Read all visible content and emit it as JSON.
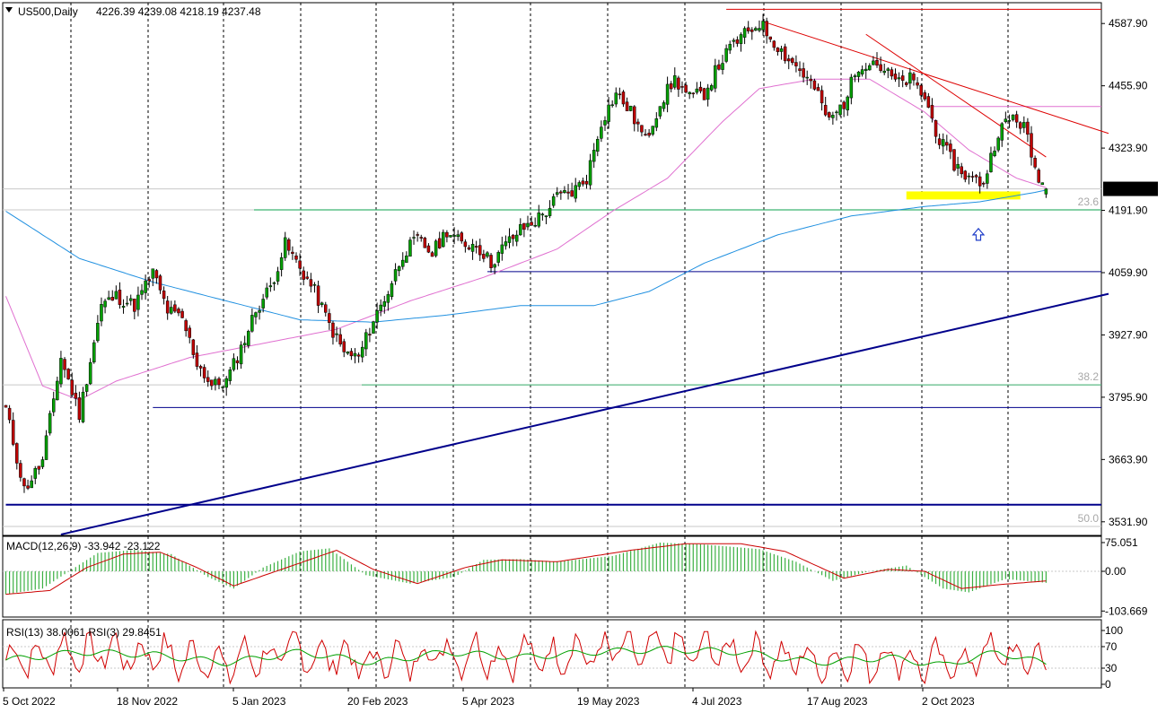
{
  "header": {
    "symbol_info": "US500,Daily",
    "ohlc": "4226.39 4239.08 4218.19 4237.48"
  },
  "colors": {
    "bull_candle": "#00a000",
    "bear_candle": "#c00000",
    "ma_fast": "#e070d0",
    "ma_slow": "#2090e0",
    "trend_red": "#dd0000",
    "support_blue": "#00008b",
    "fibo": "#3cb371",
    "highlight": "#ffff00",
    "arrow": "#1e3cc8",
    "macd_hist": "#3cb043",
    "macd_signal": "#cc0000",
    "rsi13": "#00a000",
    "rsi3": "#d00000"
  },
  "chart_data": [
    {
      "type": "candlestick",
      "symbol": "US500",
      "timeframe": "Daily",
      "x_labels": [
        "5 Oct 2022",
        "18 Nov 2022",
        "5 Jan 2023",
        "20 Feb 2023",
        "5 Apr 2023",
        "19 May 2023",
        "4 Jul 2023",
        "17 Aug 2023",
        "2 Oct 2023"
      ],
      "y_ticks": [
        "4587.90",
        "4455.90",
        "4323.90",
        "4191.90",
        "4059.90",
        "3927.90",
        "3795.90",
        "3663.90",
        "3531.90"
      ],
      "y_tick_values": [
        4587.9,
        4455.9,
        4323.9,
        4191.9,
        4059.9,
        3927.9,
        3795.9,
        3663.9,
        3531.9
      ],
      "ylim": [
        3503,
        4632
      ],
      "current_price": "4237.48",
      "close_path": [
        [
          0,
          3770
        ],
        [
          5,
          3600
        ],
        [
          10,
          3660
        ],
        [
          15,
          3880
        ],
        [
          20,
          3760
        ],
        [
          26,
          3990
        ],
        [
          30,
          4010
        ],
        [
          35,
          3990
        ],
        [
          40,
          4060
        ],
        [
          44,
          3980
        ],
        [
          48,
          3960
        ],
        [
          52,
          3870
        ],
        [
          56,
          3820
        ],
        [
          60,
          3830
        ],
        [
          64,
          3900
        ],
        [
          68,
          3980
        ],
        [
          72,
          4030
        ],
        [
          76,
          4120
        ],
        [
          80,
          4070
        ],
        [
          84,
          4020
        ],
        [
          88,
          3950
        ],
        [
          92,
          3890
        ],
        [
          96,
          3880
        ],
        [
          100,
          3960
        ],
        [
          104,
          4020
        ],
        [
          108,
          4100
        ],
        [
          112,
          4130
        ],
        [
          116,
          4100
        ],
        [
          120,
          4150
        ],
        [
          124,
          4120
        ],
        [
          128,
          4120
        ],
        [
          132,
          4080
        ],
        [
          136,
          4120
        ],
        [
          140,
          4150
        ],
        [
          144,
          4170
        ],
        [
          147,
          4190
        ],
        [
          150,
          4220
        ],
        [
          154,
          4230
        ],
        [
          158,
          4260
        ],
        [
          162,
          4380
        ],
        [
          166,
          4440
        ],
        [
          170,
          4400
        ],
        [
          174,
          4340
        ],
        [
          178,
          4420
        ],
        [
          182,
          4470
        ],
        [
          186,
          4430
        ],
        [
          190,
          4440
        ],
        [
          194,
          4500
        ],
        [
          198,
          4545
        ],
        [
          202,
          4570
        ],
        [
          205,
          4590
        ],
        [
          208,
          4560
        ],
        [
          212,
          4520
        ],
        [
          216,
          4490
        ],
        [
          220,
          4450
        ],
        [
          224,
          4380
        ],
        [
          228,
          4420
        ],
        [
          232,
          4500
        ],
        [
          236,
          4510
        ],
        [
          240,
          4480
        ],
        [
          243,
          4460
        ],
        [
          246,
          4470
        ],
        [
          250,
          4430
        ],
        [
          254,
          4340
        ],
        [
          258,
          4290
        ],
        [
          262,
          4260
        ],
        [
          266,
          4250
        ],
        [
          270,
          4360
        ],
        [
          274,
          4390
        ],
        [
          277,
          4370
        ],
        [
          280,
          4280
        ],
        [
          283,
          4237
        ]
      ],
      "moving_averages": [
        {
          "name": "MA fast",
          "color_key": "ma_fast",
          "points": [
            [
              0,
              4010
            ],
            [
              10,
              3820
            ],
            [
              20,
              3790
            ],
            [
              30,
              3830
            ],
            [
              50,
              3880
            ],
            [
              70,
              3910
            ],
            [
              90,
              3940
            ],
            [
              110,
              4000
            ],
            [
              130,
              4050
            ],
            [
              150,
              4110
            ],
            [
              165,
              4190
            ],
            [
              180,
              4260
            ],
            [
              195,
              4380
            ],
            [
              205,
              4450
            ],
            [
              220,
              4470
            ],
            [
              235,
              4470
            ],
            [
              250,
              4400
            ],
            [
              262,
              4320
            ],
            [
              275,
              4260
            ],
            [
              283,
              4240
            ]
          ]
        },
        {
          "name": "MA slow",
          "color_key": "ma_slow",
          "points": [
            [
              0,
              4190
            ],
            [
              20,
              4090
            ],
            [
              40,
              4040
            ],
            [
              60,
              4000
            ],
            [
              80,
              3960
            ],
            [
              100,
              3955
            ],
            [
              120,
              3970
            ],
            [
              140,
              3990
            ],
            [
              160,
              3990
            ],
            [
              175,
              4020
            ],
            [
              190,
              4080
            ],
            [
              210,
              4140
            ],
            [
              230,
              4180
            ],
            [
              250,
              4200
            ],
            [
              265,
              4210
            ],
            [
              280,
              4230
            ],
            [
              283,
              4235
            ]
          ]
        }
      ],
      "trendlines": [
        {
          "name": "long-term support",
          "color_key": "support_blue",
          "from": [
            15,
            3505
          ],
          "to": [
            300,
            4015
          ]
        },
        {
          "name": "resistance 1",
          "color_key": "trend_red",
          "from": [
            206,
            4592
          ],
          "to": [
            300,
            4355
          ]
        },
        {
          "name": "resistance 2",
          "color_key": "trend_red",
          "from": [
            234,
            4565
          ],
          "to": [
            283,
            4305
          ]
        }
      ],
      "horizontal_levels": [
        {
          "price": 4650,
          "color_key": "trend_red",
          "from_bar": 0
        },
        {
          "price": 4618,
          "color_key": "trend_red",
          "from_bar": 196
        },
        {
          "price": 4412,
          "color_key": "ma_fast",
          "from_bar": 252
        },
        {
          "price": 4062,
          "color_key": "support_blue",
          "from_bar": 131
        },
        {
          "price": 3774,
          "color_key": "support_blue",
          "from_bar": 40
        },
        {
          "price": 3568,
          "color_key": "support_blue",
          "from_bar": 0
        }
      ],
      "fibonacci": [
        {
          "label": "23.6",
          "price": 4193
        },
        {
          "label": "38.2",
          "price": 3822
        },
        {
          "label": "50.0",
          "price": 3522
        }
      ],
      "highlight_zone": {
        "bar_from": 245,
        "bar_to": 276,
        "price_low": 4215,
        "price_high": 4232
      }
    },
    {
      "type": "macd",
      "label": "MACD(12,26,9) -33.942 -23.122",
      "y_ticks": [
        "75.051",
        "0.00",
        "-103.669"
      ],
      "ylim": [
        -110,
        82
      ],
      "hist_path": [
        [
          0,
          -60
        ],
        [
          10,
          -45
        ],
        [
          18,
          5
        ],
        [
          25,
          48
        ],
        [
          35,
          56
        ],
        [
          45,
          45
        ],
        [
          55,
          -15
        ],
        [
          62,
          -45
        ],
        [
          70,
          10
        ],
        [
          80,
          52
        ],
        [
          88,
          60
        ],
        [
          98,
          -10
        ],
        [
          110,
          -32
        ],
        [
          122,
          -15
        ],
        [
          130,
          30
        ],
        [
          140,
          32
        ],
        [
          150,
          25
        ],
        [
          165,
          40
        ],
        [
          178,
          75
        ],
        [
          190,
          70
        ],
        [
          205,
          58
        ],
        [
          215,
          25
        ],
        [
          225,
          -25
        ],
        [
          235,
          0
        ],
        [
          245,
          15
        ],
        [
          255,
          -45
        ],
        [
          262,
          -55
        ],
        [
          272,
          -20
        ],
        [
          283,
          -30
        ]
      ],
      "signal_path": [
        [
          0,
          -60
        ],
        [
          12,
          -50
        ],
        [
          22,
          10
        ],
        [
          32,
          45
        ],
        [
          42,
          50
        ],
        [
          52,
          10
        ],
        [
          62,
          -38
        ],
        [
          75,
          5
        ],
        [
          90,
          55
        ],
        [
          100,
          5
        ],
        [
          112,
          -32
        ],
        [
          125,
          10
        ],
        [
          135,
          30
        ],
        [
          150,
          25
        ],
        [
          170,
          55
        ],
        [
          185,
          72
        ],
        [
          200,
          72
        ],
        [
          212,
          52
        ],
        [
          228,
          -18
        ],
        [
          240,
          5
        ],
        [
          250,
          0
        ],
        [
          260,
          -45
        ],
        [
          270,
          -35
        ],
        [
          283,
          -25
        ]
      ]
    },
    {
      "type": "rsi",
      "label": "RSI(13) 38.0061  RSI(3) 29.8451",
      "y_ticks": [
        "100",
        "70",
        "30",
        "0"
      ],
      "levels": [
        70,
        30
      ],
      "rsi13": [
        [
          0,
          45
        ],
        [
          20,
          60
        ],
        [
          40,
          55
        ],
        [
          60,
          40
        ],
        [
          80,
          60
        ],
        [
          100,
          40
        ],
        [
          120,
          60
        ],
        [
          140,
          50
        ],
        [
          160,
          60
        ],
        [
          180,
          65
        ],
        [
          200,
          60
        ],
        [
          220,
          40
        ],
        [
          240,
          50
        ],
        [
          255,
          35
        ],
        [
          270,
          60
        ],
        [
          283,
          38
        ]
      ],
      "rsi3_seed": 7
    }
  ]
}
